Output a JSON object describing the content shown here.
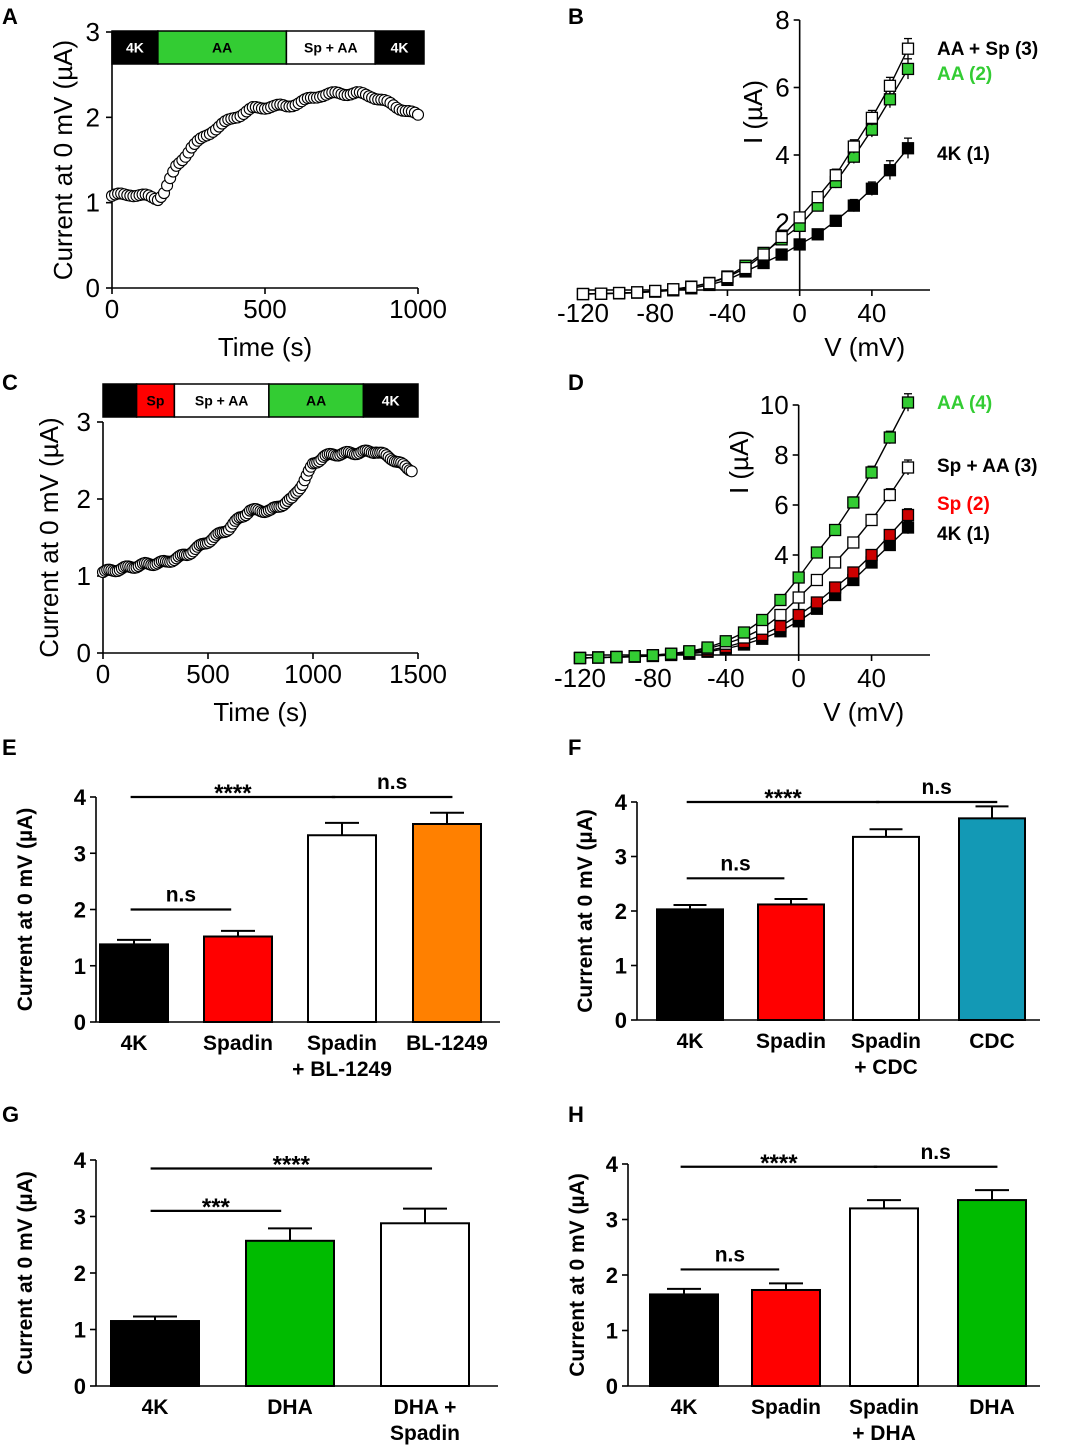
{
  "colors": {
    "black": "#000000",
    "red": "#ff0000",
    "green": "#33cc33",
    "green_bar": "#00bb00",
    "orange": "#ff8000",
    "teal": "#1399b5",
    "white": "#ffffff"
  },
  "chart_data": [
    {
      "panel": "A",
      "type": "scatter",
      "xlabel": "Time (s)",
      "ylabel": "Current at 0 mV (µA)",
      "xlim": [
        0,
        1000
      ],
      "ylim": [
        0,
        3
      ],
      "xticks": [
        "0",
        "500",
        "1000"
      ],
      "yticks": [
        "0",
        "1",
        "2",
        "3"
      ],
      "protocol": [
        {
          "label": "4K",
          "start": 0,
          "end": 150,
          "color": "#000000",
          "text_color": "#ffffff"
        },
        {
          "label": "AA",
          "start": 150,
          "end": 570,
          "color": "#33cc33",
          "text_color": "#000000"
        },
        {
          "label": "Sp + AA",
          "start": 570,
          "end": 860,
          "color": "#ffffff",
          "text_color": "#000000"
        },
        {
          "label": "4K",
          "start": 860,
          "end": 1020,
          "color": "#000000",
          "text_color": "#ffffff"
        }
      ],
      "trace": [
        [
          0,
          1.08
        ],
        [
          60,
          1.1
        ],
        [
          120,
          1.07
        ],
        [
          150,
          1.05
        ],
        [
          170,
          1.12
        ],
        [
          210,
          1.42
        ],
        [
          260,
          1.65
        ],
        [
          330,
          1.85
        ],
        [
          400,
          2.0
        ],
        [
          460,
          2.1
        ],
        [
          520,
          2.13
        ],
        [
          570,
          2.13
        ],
        [
          620,
          2.18
        ],
        [
          680,
          2.26
        ],
        [
          740,
          2.28
        ],
        [
          800,
          2.28
        ],
        [
          850,
          2.25
        ],
        [
          900,
          2.17
        ],
        [
          960,
          2.08
        ],
        [
          1000,
          2.02
        ]
      ],
      "marker": "open-circle",
      "sample_step": 10
    },
    {
      "panel": "B",
      "type": "line",
      "xlabel": "V (mV)",
      "ylabel": "I (µA)",
      "xlim": [
        -120,
        60
      ],
      "ylim": [
        0,
        8
      ],
      "xticks": [
        "-120",
        "-80",
        "-40",
        "0",
        "40"
      ],
      "yticks": [
        "2",
        "4",
        "6",
        "8"
      ],
      "x": [
        -120,
        -110,
        -100,
        -90,
        -80,
        -70,
        -60,
        -50,
        -40,
        -30,
        -20,
        -10,
        0,
        10,
        20,
        30,
        40,
        50,
        60
      ],
      "series": [
        {
          "name": "AA + Sp (3)",
          "marker": "open-square",
          "color": "#000000",
          "label_color": "#000000",
          "values": [
            -0.12,
            -0.11,
            -0.09,
            -0.07,
            -0.03,
            0.02,
            0.09,
            0.2,
            0.38,
            0.65,
            1.05,
            1.57,
            2.15,
            2.75,
            3.4,
            4.25,
            5.1,
            6.05,
            7.15
          ],
          "errors": [
            0.05,
            0.05,
            0.05,
            0.05,
            0.05,
            0.05,
            0.05,
            0.05,
            0.05,
            0.08,
            0.08,
            0.1,
            0.12,
            0.15,
            0.18,
            0.2,
            0.22,
            0.25,
            0.3
          ]
        },
        {
          "name": "AA (2)",
          "marker": "filled-square",
          "color": "#33cc33",
          "label_color": "#33cc33",
          "values": [
            -0.12,
            -0.11,
            -0.09,
            -0.07,
            -0.03,
            0.02,
            0.1,
            0.21,
            0.4,
            0.72,
            1.1,
            1.5,
            1.9,
            2.5,
            3.2,
            3.95,
            4.75,
            5.65,
            6.55
          ],
          "errors": [
            0.05,
            0.05,
            0.05,
            0.05,
            0.05,
            0.05,
            0.05,
            0.05,
            0.05,
            0.08,
            0.08,
            0.1,
            0.12,
            0.15,
            0.18,
            0.2,
            0.22,
            0.25,
            0.3
          ]
        },
        {
          "name": "4K (1)",
          "marker": "filled-square",
          "color": "#000000",
          "label_color": "#000000",
          "values": [
            -0.12,
            -0.11,
            -0.1,
            -0.08,
            -0.05,
            -0.01,
            0.05,
            0.15,
            0.3,
            0.55,
            0.8,
            1.05,
            1.35,
            1.65,
            2.05,
            2.5,
            3.0,
            3.55,
            4.2
          ],
          "errors": [
            0.05,
            0.05,
            0.05,
            0.05,
            0.05,
            0.05,
            0.05,
            0.05,
            0.05,
            0.08,
            0.08,
            0.1,
            0.1,
            0.12,
            0.15,
            0.18,
            0.2,
            0.28,
            0.3
          ]
        }
      ]
    },
    {
      "panel": "C",
      "type": "scatter",
      "xlabel": "Time (s)",
      "ylabel": "Current at 0 mV (µA)",
      "xlim": [
        0,
        1500
      ],
      "ylim": [
        0,
        3
      ],
      "xticks": [
        "0",
        "500",
        "1000",
        "1500"
      ],
      "yticks": [
        "0",
        "1",
        "2",
        "3"
      ],
      "protocol": [
        {
          "label": "",
          "start": 0,
          "end": 160,
          "color": "#000000",
          "text_color": "#ffffff"
        },
        {
          "label": "Sp",
          "start": 160,
          "end": 340,
          "color": "#ff0000",
          "text_color": "#000000"
        },
        {
          "label": "Sp + AA",
          "start": 340,
          "end": 790,
          "color": "#ffffff",
          "text_color": "#000000"
        },
        {
          "label": "AA",
          "start": 790,
          "end": 1240,
          "color": "#33cc33",
          "text_color": "#000000"
        },
        {
          "label": "4K",
          "start": 1240,
          "end": 1500,
          "color": "#000000",
          "text_color": "#ffffff"
        }
      ],
      "trace": [
        [
          0,
          1.05
        ],
        [
          100,
          1.1
        ],
        [
          200,
          1.15
        ],
        [
          300,
          1.18
        ],
        [
          400,
          1.28
        ],
        [
          500,
          1.45
        ],
        [
          600,
          1.62
        ],
        [
          650,
          1.75
        ],
        [
          700,
          1.85
        ],
        [
          800,
          1.85
        ],
        [
          900,
          2.0
        ],
        [
          950,
          2.2
        ],
        [
          1000,
          2.45
        ],
        [
          1050,
          2.55
        ],
        [
          1100,
          2.58
        ],
        [
          1200,
          2.6
        ],
        [
          1300,
          2.62
        ],
        [
          1380,
          2.52
        ],
        [
          1450,
          2.4
        ],
        [
          1470,
          2.38
        ]
      ],
      "marker": "open-circle",
      "sample_step": 10
    },
    {
      "panel": "D",
      "type": "line",
      "xlabel": "V (mV)",
      "ylabel": "I (µA)",
      "xlim": [
        -120,
        60
      ],
      "ylim": [
        0,
        10
      ],
      "xticks": [
        "-120",
        "-80",
        "-40",
        "0",
        "40"
      ],
      "yticks": [
        "4",
        "6",
        "8",
        "10"
      ],
      "x": [
        -120,
        -110,
        -100,
        -90,
        -80,
        -70,
        -60,
        -50,
        -40,
        -30,
        -20,
        -10,
        0,
        10,
        20,
        30,
        40,
        50,
        60
      ],
      "series": [
        {
          "name": "AA (4)",
          "marker": "filled-square",
          "color": "#33cc33",
          "label_color": "#33cc33",
          "values": [
            -0.12,
            -0.1,
            -0.08,
            -0.05,
            -0.01,
            0.05,
            0.15,
            0.3,
            0.55,
            0.9,
            1.4,
            2.2,
            3.1,
            4.1,
            5.0,
            6.1,
            7.3,
            8.7,
            10.1
          ],
          "errors": [
            0.05,
            0.05,
            0.05,
            0.05,
            0.05,
            0.05,
            0.05,
            0.05,
            0.08,
            0.1,
            0.12,
            0.15,
            0.15,
            0.18,
            0.2,
            0.22,
            0.25,
            0.25,
            0.35
          ]
        },
        {
          "name": "Sp + AA (3)",
          "marker": "open-square",
          "color": "#000000",
          "label_color": "#000000",
          "values": [
            -0.12,
            -0.1,
            -0.08,
            -0.05,
            -0.01,
            0.05,
            0.12,
            0.25,
            0.45,
            0.7,
            1.05,
            1.6,
            2.3,
            3.0,
            3.7,
            4.5,
            5.4,
            6.4,
            7.5
          ],
          "errors": [
            0.05,
            0.05,
            0.05,
            0.05,
            0.05,
            0.05,
            0.05,
            0.05,
            0.08,
            0.1,
            0.1,
            0.12,
            0.12,
            0.15,
            0.18,
            0.2,
            0.22,
            0.25,
            0.3
          ]
        },
        {
          "name": "Sp (2)",
          "marker": "filled-square",
          "color": "#cc0000",
          "label_color": "#ff0000",
          "values": [
            -0.12,
            -0.1,
            -0.08,
            -0.06,
            -0.03,
            0.02,
            0.08,
            0.18,
            0.32,
            0.52,
            0.8,
            1.15,
            1.6,
            2.1,
            2.7,
            3.3,
            4.0,
            4.8,
            5.6
          ],
          "errors": [
            0.05,
            0.05,
            0.05,
            0.05,
            0.05,
            0.05,
            0.05,
            0.05,
            0.06,
            0.08,
            0.08,
            0.1,
            0.1,
            0.12,
            0.15,
            0.15,
            0.18,
            0.2,
            0.25
          ]
        },
        {
          "name": "4K (1)",
          "marker": "filled-square",
          "color": "#000000",
          "label_color": "#000000",
          "values": [
            -0.12,
            -0.1,
            -0.09,
            -0.07,
            -0.04,
            0.0,
            0.05,
            0.13,
            0.25,
            0.42,
            0.65,
            0.95,
            1.35,
            1.85,
            2.4,
            3.0,
            3.7,
            4.4,
            5.1
          ],
          "errors": [
            0.05,
            0.05,
            0.05,
            0.05,
            0.05,
            0.05,
            0.05,
            0.05,
            0.06,
            0.08,
            0.08,
            0.1,
            0.1,
            0.12,
            0.15,
            0.15,
            0.18,
            0.2,
            0.25
          ]
        }
      ]
    },
    {
      "panel": "E",
      "type": "bar",
      "ylabel": "Current at 0 mV (µA)",
      "ylim": [
        0,
        4
      ],
      "yticks": [
        "0",
        "1",
        "2",
        "3",
        "4"
      ],
      "categories": [
        "4K",
        "Spadin",
        "Spadin\n+ BL-1249",
        "BL-1249"
      ],
      "values": [
        1.38,
        1.52,
        3.32,
        3.52
      ],
      "errors": [
        0.08,
        0.1,
        0.22,
        0.2
      ],
      "bar_colors": [
        "#000000",
        "#ff0000",
        "#ffffff",
        "#ff8000"
      ],
      "significance": [
        {
          "from": 0,
          "to": 1,
          "label": "n.s",
          "level": 2.0
        },
        {
          "from": 0,
          "to": 2,
          "label": "****",
          "level": 4.0
        },
        {
          "from": 2,
          "to": 3,
          "label": "n.s",
          "level": 4.0
        }
      ]
    },
    {
      "panel": "F",
      "type": "bar",
      "ylabel": "Current at 0 mV (µA)",
      "ylim": [
        0,
        4
      ],
      "yticks": [
        "0",
        "1",
        "2",
        "3",
        "4"
      ],
      "categories": [
        "4K",
        "Spadin",
        "Spadin\n+ CDC",
        "CDC"
      ],
      "values": [
        2.03,
        2.12,
        3.36,
        3.7
      ],
      "errors": [
        0.08,
        0.1,
        0.14,
        0.22
      ],
      "bar_colors": [
        "#000000",
        "#ff0000",
        "#ffffff",
        "#1399b5"
      ],
      "significance": [
        {
          "from": 0,
          "to": 1,
          "label": "n.s",
          "level": 2.6
        },
        {
          "from": 0,
          "to": 2,
          "label": "****",
          "level": 4.0
        },
        {
          "from": 2,
          "to": 3,
          "label": "n.s",
          "level": 4.0
        }
      ]
    },
    {
      "panel": "G",
      "type": "bar",
      "ylabel": "Current at 0 mV (µA)",
      "ylim": [
        0,
        4
      ],
      "yticks": [
        "0",
        "1",
        "2",
        "3",
        "4"
      ],
      "categories": [
        "4K",
        "DHA",
        "DHA +\nSpadin"
      ],
      "values": [
        1.15,
        2.57,
        2.88
      ],
      "errors": [
        0.08,
        0.22,
        0.26
      ],
      "bar_colors": [
        "#000000",
        "#00bb00",
        "#ffffff"
      ],
      "significance": [
        {
          "from": 0,
          "to": 1,
          "label": "***",
          "level": 3.1
        },
        {
          "from": 0,
          "to": 2,
          "label": "****",
          "level": 3.85
        }
      ]
    },
    {
      "panel": "H",
      "type": "bar",
      "ylabel": "Current at 0 mV (µA)",
      "ylim": [
        0,
        4
      ],
      "yticks": [
        "0",
        "1",
        "2",
        "3",
        "4"
      ],
      "categories": [
        "4K",
        "Spadin",
        "Spadin\n+ DHA",
        "DHA"
      ],
      "values": [
        1.65,
        1.73,
        3.2,
        3.35
      ],
      "errors": [
        0.1,
        0.12,
        0.15,
        0.18
      ],
      "bar_colors": [
        "#000000",
        "#ff0000",
        "#ffffff",
        "#00bb00"
      ],
      "significance": [
        {
          "from": 0,
          "to": 1,
          "label": "n.s",
          "level": 2.1
        },
        {
          "from": 0,
          "to": 2,
          "label": "****",
          "level": 3.95
        },
        {
          "from": 2,
          "to": 3,
          "label": "n.s",
          "level": 3.95
        }
      ]
    }
  ]
}
